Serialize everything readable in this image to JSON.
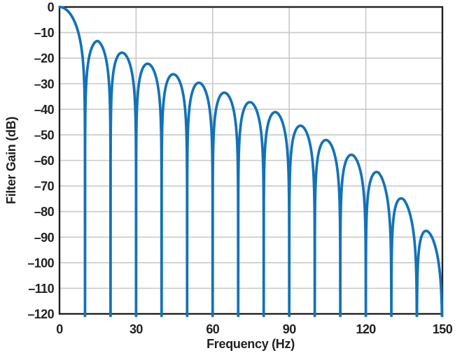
{
  "figure": {
    "background": "#ffffff"
  },
  "style": {
    "curve_color": "#1272b8",
    "grid_color": "#c9c9c9",
    "frame_color": "#231f20",
    "text_color": "#231f20"
  },
  "chart_data": {
    "type": "line",
    "title": "",
    "xlabel": "Frequency (Hz)",
    "ylabel": "Filter Gain (dB)",
    "xlim": [
      0,
      150
    ],
    "ylim": [
      -120,
      0
    ],
    "grid": true,
    "legend": "none",
    "x_ticks": [
      {
        "value": 0,
        "label": "0"
      },
      {
        "value": 30,
        "label": "30"
      },
      {
        "value": 60,
        "label": "60"
      },
      {
        "value": 90,
        "label": "90"
      },
      {
        "value": 120,
        "label": "120"
      },
      {
        "value": 150,
        "label": "150"
      }
    ],
    "y_ticks": [
      {
        "value": 0,
        "label": "0"
      },
      {
        "value": -10,
        "label": "–10"
      },
      {
        "value": -20,
        "label": "–20"
      },
      {
        "value": -30,
        "label": "–30"
      },
      {
        "value": -40,
        "label": "–40"
      },
      {
        "value": -50,
        "label": "–50"
      },
      {
        "value": -60,
        "label": "–60"
      },
      {
        "value": -70,
        "label": "–70"
      },
      {
        "value": -80,
        "label": "–80"
      },
      {
        "value": -90,
        "label": "–90"
      },
      {
        "value": -100,
        "label": "–100"
      },
      {
        "value": -110,
        "label": "–110"
      },
      {
        "value": -120,
        "label": "–120"
      }
    ],
    "x_gridlines": [
      30,
      60,
      90,
      120
    ],
    "y_gridlines": [
      -10,
      -20,
      -30,
      -40,
      -50,
      -60,
      -70,
      -80,
      -90,
      -100,
      -110
    ],
    "series": [
      {
        "name": "Filter gain",
        "color": "#1272b8",
        "model": "comb-notch response: for f < 10 Hz gain_dB = 20*log10|sinc(f/10)|; for f >= 10 Hz gain_dB = envelope_dB(f) + 20*log10|sin(pi*f/10)|; clipped at -120 dB",
        "dc_gain_db": 0,
        "notch_spacing_hz": 10,
        "notches_hz": [
          10,
          20,
          30,
          40,
          50,
          60,
          70,
          80,
          90,
          100,
          110,
          120,
          130,
          140,
          150
        ],
        "notch_depth_db": -120,
        "lobe_peaks": [
          {
            "f": 15,
            "db": -13.3
          },
          {
            "f": 25,
            "db": -18.0
          },
          {
            "f": 35,
            "db": -22.3
          },
          {
            "f": 45,
            "db": -26.4
          },
          {
            "f": 55,
            "db": -29.7
          },
          {
            "f": 65,
            "db": -33.6
          },
          {
            "f": 75,
            "db": -37.3
          },
          {
            "f": 85,
            "db": -41.2
          },
          {
            "f": 95,
            "db": -46.6
          },
          {
            "f": 105,
            "db": -52.2
          },
          {
            "f": 115,
            "db": -58.0
          },
          {
            "f": 125,
            "db": -64.8
          },
          {
            "f": 135,
            "db": -75.5
          },
          {
            "f": 145,
            "db": -88.5
          }
        ]
      }
    ]
  }
}
